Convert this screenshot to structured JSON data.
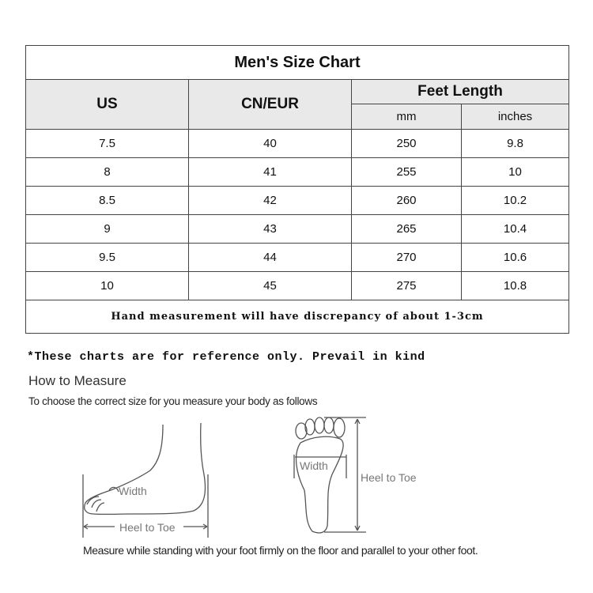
{
  "table": {
    "title": "Men's Size Chart",
    "headers": {
      "us": "US",
      "cn_eur": "CN/EUR",
      "feet_length": "Feet Length",
      "mm": "mm",
      "inches": "inches"
    },
    "rows": [
      [
        "7.5",
        "40",
        "250",
        "9.8"
      ],
      [
        "8",
        "41",
        "255",
        "10"
      ],
      [
        "8.5",
        "42",
        "260",
        "10.2"
      ],
      [
        "9",
        "43",
        "265",
        "10.4"
      ],
      [
        "9.5",
        "44",
        "270",
        "10.6"
      ],
      [
        "10",
        "45",
        "275",
        "10.8"
      ]
    ],
    "footer": "Hand measurement will have discrepancy of about 1-3cm"
  },
  "note": "*These charts are for reference only. Prevail in kind",
  "how_to": {
    "title": "How to Measure",
    "subtitle": "To choose the correct size for you measure your body as follows",
    "side_width_label": "Width",
    "side_length_label": "Heel to Toe",
    "sole_width_label": "Width",
    "sole_length_label": "Heel to Toe",
    "instruction": "Measure while standing with your foot firmly on the floor and parallel to your other foot."
  },
  "colors": {
    "header_bg": "#e9e9e9",
    "border": "#444444",
    "illustration": "#555555"
  }
}
